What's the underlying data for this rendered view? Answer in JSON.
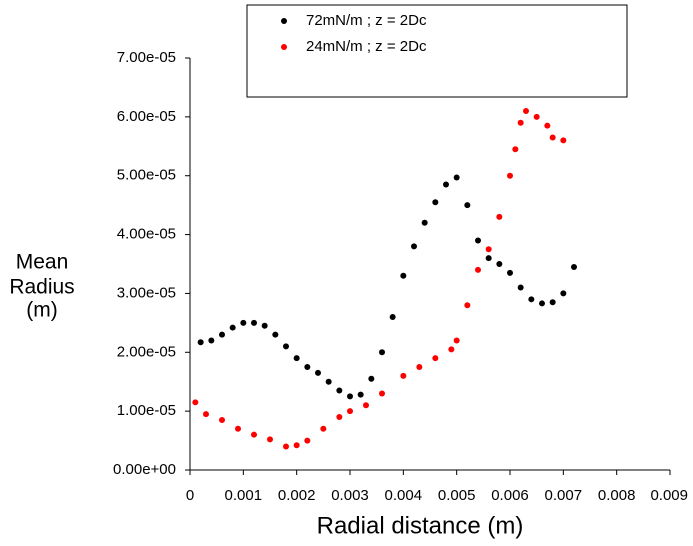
{
  "chart_data": {
    "type": "scatter",
    "x_label": "Radial distance (m)",
    "y_label_lines": [
      "Mean",
      "Radius",
      "(m)"
    ],
    "xlim": [
      0,
      0.009
    ],
    "ylim": [
      0,
      7e-05
    ],
    "xticks": [
      0,
      0.001,
      0.002,
      0.003,
      0.004,
      0.005,
      0.006,
      0.007,
      0.008,
      0.009
    ],
    "yticks": [
      {
        "value": 0,
        "label": "0.00e+00"
      },
      {
        "value": 1e-05,
        "label": "1.00e-05"
      },
      {
        "value": 2e-05,
        "label": "2.00e-05"
      },
      {
        "value": 3e-05,
        "label": "3.00e-05"
      },
      {
        "value": 4e-05,
        "label": "4.00e-05"
      },
      {
        "value": 5e-05,
        "label": "5.00e-05"
      },
      {
        "value": 6e-05,
        "label": "6.00e-05"
      },
      {
        "value": 7e-05,
        "label": "7.00e-05"
      }
    ],
    "series": [
      {
        "name": "72mN/m ; z = 2Dc",
        "color": "#000000",
        "x": [
          0.0002,
          0.0004,
          0.0006,
          0.0008,
          0.001,
          0.0012,
          0.0014,
          0.0016,
          0.0018,
          0.002,
          0.0022,
          0.0024,
          0.0026,
          0.0028,
          0.003,
          0.0032,
          0.0034,
          0.0036,
          0.0038,
          0.004,
          0.0042,
          0.0044,
          0.0046,
          0.0048,
          0.005,
          0.0052,
          0.0054,
          0.0056,
          0.0058,
          0.006,
          0.0062,
          0.0064,
          0.0066,
          0.0068,
          0.007,
          0.0072
        ],
        "values": [
          2.17e-05,
          2.2e-05,
          2.3e-05,
          2.42e-05,
          2.5e-05,
          2.5e-05,
          2.45e-05,
          2.3e-05,
          2.1e-05,
          1.9e-05,
          1.75e-05,
          1.65e-05,
          1.5e-05,
          1.35e-05,
          1.25e-05,
          1.28e-05,
          1.55e-05,
          2e-05,
          2.6e-05,
          3.3e-05,
          3.8e-05,
          4.2e-05,
          4.55e-05,
          4.85e-05,
          4.97e-05,
          4.5e-05,
          3.9e-05,
          3.6e-05,
          3.5e-05,
          3.35e-05,
          3.1e-05,
          2.9e-05,
          2.83e-05,
          2.85e-05,
          3e-05,
          3.45e-05
        ]
      },
      {
        "name": "24mN/m ; z = 2Dc",
        "color": "#ff0000",
        "x": [
          0.0001,
          0.0003,
          0.0006,
          0.0009,
          0.0012,
          0.0015,
          0.0018,
          0.002,
          0.0022,
          0.0025,
          0.0028,
          0.003,
          0.0033,
          0.0036,
          0.004,
          0.0043,
          0.0046,
          0.0049,
          0.005,
          0.0052,
          0.0054,
          0.0056,
          0.0058,
          0.006,
          0.0061,
          0.0062,
          0.0063,
          0.0065,
          0.0067,
          0.0068,
          0.007
        ],
        "values": [
          1.15e-05,
          9.5e-06,
          8.5e-06,
          7e-06,
          6e-06,
          5.2e-06,
          4e-06,
          4.2e-06,
          5e-06,
          7e-06,
          9e-06,
          1e-05,
          1.1e-05,
          1.3e-05,
          1.6e-05,
          1.75e-05,
          1.9e-05,
          2.05e-05,
          2.2e-05,
          2.8e-05,
          3.4e-05,
          3.75e-05,
          4.3e-05,
          5e-05,
          5.45e-05,
          5.9e-05,
          6.1e-05,
          6e-05,
          5.85e-05,
          5.65e-05,
          5.6e-05
        ]
      }
    ]
  }
}
